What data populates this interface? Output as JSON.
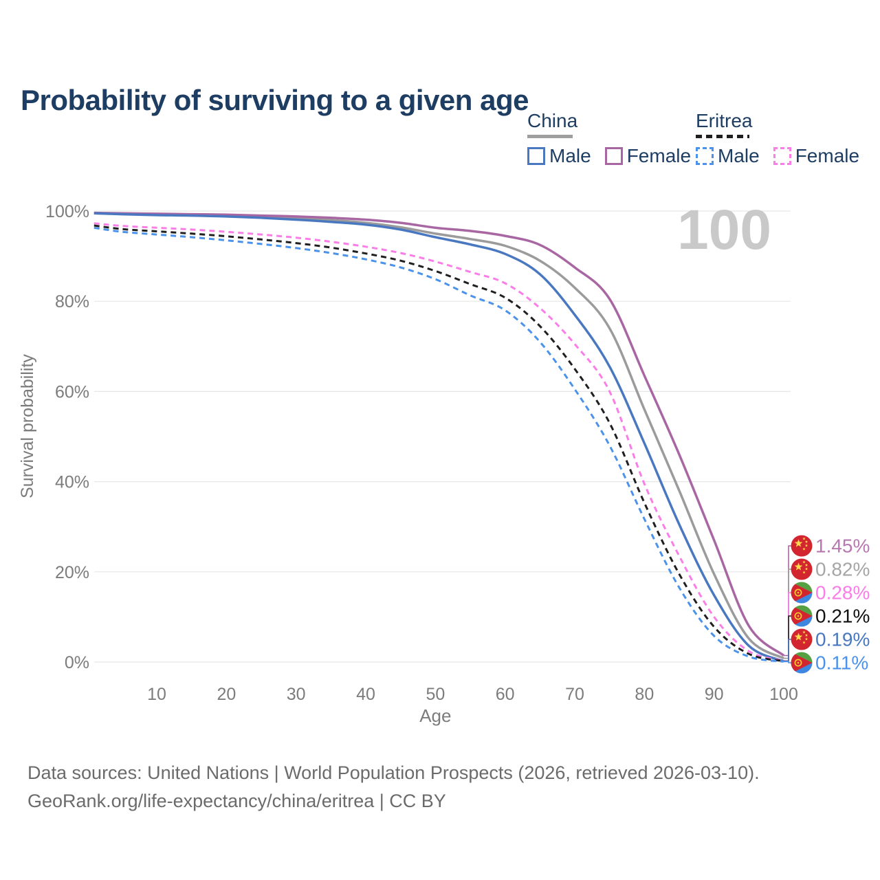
{
  "title": "Probability of surviving to a given age",
  "legend": {
    "groups": [
      {
        "name": "China",
        "line_style": "solid",
        "underline_color": "#9e9e9e",
        "items": [
          {
            "label": "Male",
            "color": "#4a78c0"
          },
          {
            "label": "Female",
            "color": "#a867a3"
          }
        ]
      },
      {
        "name": "Eritrea",
        "line_style": "dashed",
        "underline_color": "#1f1f1f",
        "items": [
          {
            "label": "Male",
            "color": "#4b93ea"
          },
          {
            "label": "Female",
            "color": "#fb7de8"
          }
        ]
      }
    ]
  },
  "watermark_age": "100",
  "chart_data": {
    "type": "line",
    "title": "Probability of surviving to a given age",
    "xlabel": "Age",
    "ylabel": "Survival probability",
    "xlim": [
      0,
      100
    ],
    "ylim": [
      0,
      100
    ],
    "grid": true,
    "x_ticks": [
      10,
      20,
      30,
      40,
      50,
      60,
      70,
      80,
      90,
      100
    ],
    "y_ticks": {
      "values": [
        0,
        20,
        40,
        60,
        80,
        100
      ],
      "labels": [
        "0%",
        "20%",
        "40%",
        "60%",
        "80%",
        "100%"
      ]
    },
    "ages": [
      1,
      5,
      10,
      15,
      20,
      25,
      30,
      35,
      40,
      45,
      50,
      55,
      60,
      65,
      70,
      75,
      80,
      85,
      90,
      95,
      100
    ],
    "series": [
      {
        "name": "China",
        "country": "china",
        "sex": "both",
        "line": "solid",
        "color": "#9b9b9b",
        "values": [
          99.5,
          99.4,
          99.2,
          99.1,
          98.9,
          98.7,
          98.4,
          98.0,
          97.4,
          96.4,
          95.0,
          93.8,
          92.3,
          89.0,
          83.0,
          74.0,
          56.0,
          38.0,
          19.5,
          5.2,
          0.82
        ]
      },
      {
        "name": "China Female",
        "country": "china",
        "sex": "female",
        "line": "solid",
        "color": "#a867a3",
        "values": [
          99.6,
          99.5,
          99.4,
          99.3,
          99.2,
          99.0,
          98.8,
          98.5,
          98.1,
          97.4,
          96.3,
          95.6,
          94.5,
          92.5,
          87.5,
          80.5,
          63.5,
          46.0,
          27.0,
          8.0,
          1.45
        ]
      },
      {
        "name": "China Male",
        "country": "china",
        "sex": "male",
        "line": "solid",
        "color": "#4a78c0",
        "values": [
          99.5,
          99.3,
          99.1,
          99.0,
          98.8,
          98.5,
          98.1,
          97.6,
          97.0,
          95.9,
          94.2,
          92.6,
          90.5,
          86.0,
          77.0,
          65.5,
          48.5,
          30.5,
          14.8,
          3.6,
          0.19
        ]
      },
      {
        "name": "Eritrea Female",
        "country": "eritrea",
        "sex": "female",
        "line": "dashed",
        "color": "#fb7de8",
        "values": [
          97.3,
          96.7,
          96.3,
          95.9,
          95.4,
          94.8,
          94.1,
          93.2,
          92.1,
          90.7,
          88.8,
          86.5,
          84.0,
          78.5,
          70.5,
          60.0,
          39.5,
          23.5,
          10.0,
          2.4,
          0.28
        ]
      },
      {
        "name": "Eritrea",
        "country": "eritrea",
        "sex": "both",
        "line": "dashed",
        "color": "#1f1f1f",
        "values": [
          96.8,
          96.0,
          95.5,
          95.0,
          94.4,
          93.7,
          92.9,
          91.9,
          90.6,
          89.0,
          86.7,
          83.8,
          80.8,
          74.5,
          65.0,
          53.0,
          35.3,
          19.5,
          7.8,
          1.8,
          0.21
        ]
      },
      {
        "name": "Eritrea Male",
        "country": "eritrea",
        "sex": "male",
        "line": "dashed",
        "color": "#4b93ea",
        "values": [
          96.3,
          95.4,
          94.8,
          94.2,
          93.5,
          92.7,
          91.8,
          90.7,
          89.3,
          87.5,
          84.9,
          81.3,
          78.0,
          71.0,
          60.5,
          48.0,
          31.7,
          16.5,
          5.8,
          1.2,
          0.11
        ]
      }
    ],
    "end_labels": [
      {
        "series": "China Female",
        "country": "china",
        "value": "1.45%",
        "text_color": "#b778b1"
      },
      {
        "series": "China",
        "country": "china",
        "value": "0.82%",
        "text_color": "#a6a6a6"
      },
      {
        "series": "Eritrea Female",
        "country": "eritrea",
        "value": "0.28%",
        "text_color": "#fb7de8"
      },
      {
        "series": "Eritrea",
        "country": "eritrea",
        "value": "0.21%",
        "text_color": "#111111"
      },
      {
        "series": "China Male",
        "country": "china",
        "value": "0.19%",
        "text_color": "#4a78c0"
      },
      {
        "series": "Eritrea Male",
        "country": "eritrea",
        "value": "0.11%",
        "text_color": "#4b93ea"
      }
    ],
    "legend_position": "top-right"
  },
  "flag_colors": {
    "china_red": "#d2252f",
    "china_gold": "#ffd84d",
    "eritrea_green": "#55a043",
    "eritrea_blue": "#3d87e0",
    "eritrea_red": "#d2252f",
    "eritrea_gold": "#f5c431"
  },
  "footer": {
    "line1": "Data sources: United Nations | World Population Prospects (2026, retrieved 2026-03-10).",
    "line2": "GeoRank.org/life-expectancy/china/eritrea | CC BY"
  }
}
